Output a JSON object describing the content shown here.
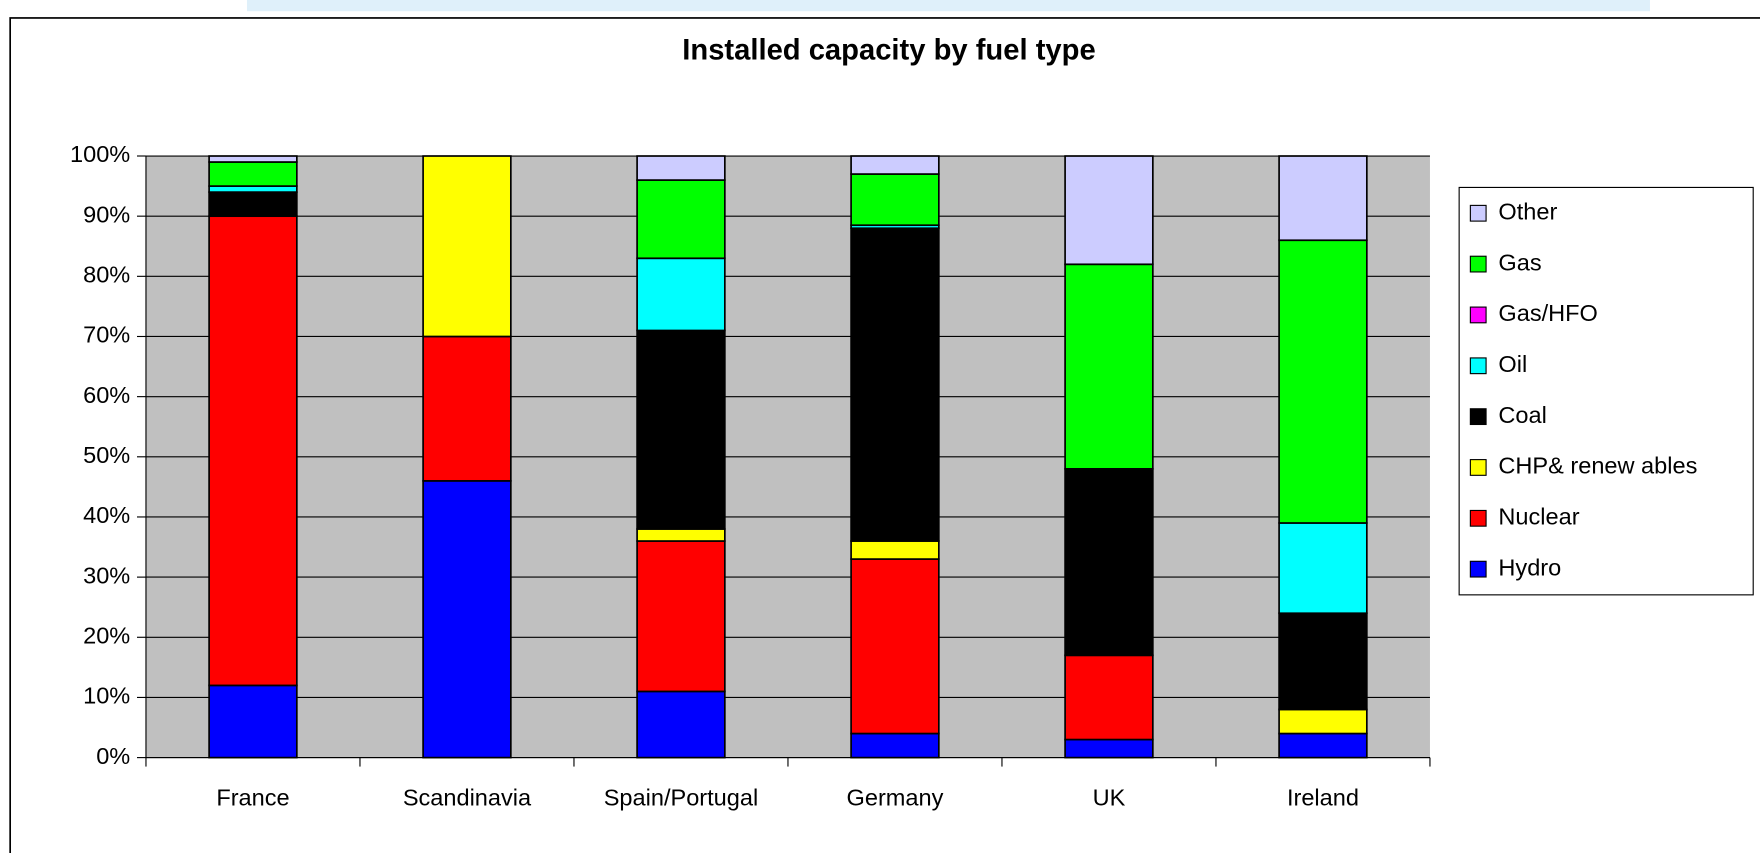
{
  "chart_data": {
    "type": "stacked_bar",
    "title": "Installed capacity by fuel type",
    "categories": [
      "France",
      "Scandinavia",
      "Spain/Portugal",
      "Germany",
      "UK",
      "Ireland"
    ],
    "series": [
      {
        "name": "Hydro",
        "color": "#0000ff",
        "values": [
          12,
          46,
          11,
          4,
          3,
          4
        ]
      },
      {
        "name": "Nuclear",
        "color": "#ff0000",
        "values": [
          78,
          24,
          25,
          29,
          14,
          0
        ]
      },
      {
        "name": "CHP& renew ables",
        "color": "#ffff00",
        "values": [
          0,
          30,
          2,
          3,
          0,
          4
        ]
      },
      {
        "name": "Coal",
        "color": "#000000",
        "values": [
          4,
          0,
          33,
          52,
          31,
          16
        ]
      },
      {
        "name": "Oil",
        "color": "#00ffff",
        "values": [
          1,
          0,
          12,
          0.5,
          0,
          15
        ]
      },
      {
        "name": "Gas/HFO",
        "color": "#ff00ff",
        "values": [
          0,
          0,
          0,
          0,
          0,
          0
        ]
      },
      {
        "name": "Gas",
        "color": "#00ff00",
        "values": [
          4,
          0,
          13,
          8.5,
          34,
          47
        ]
      },
      {
        "name": "Other",
        "color": "#ccccff",
        "values": [
          1,
          0,
          4,
          3,
          18,
          14
        ]
      }
    ],
    "ylim": [
      0,
      100
    ],
    "yticks": [
      {
        "value": 0,
        "label": "0%"
      },
      {
        "value": 10,
        "label": "10%"
      },
      {
        "value": 20,
        "label": "20%"
      },
      {
        "value": 30,
        "label": "30%"
      },
      {
        "value": 40,
        "label": "40%"
      },
      {
        "value": 50,
        "label": "50%"
      },
      {
        "value": 60,
        "label": "60%"
      },
      {
        "value": 70,
        "label": "70%"
      },
      {
        "value": 80,
        "label": "80%"
      },
      {
        "value": 90,
        "label": "90%"
      },
      {
        "value": 100,
        "label": "100%"
      }
    ],
    "grid": true,
    "legend": "right"
  }
}
